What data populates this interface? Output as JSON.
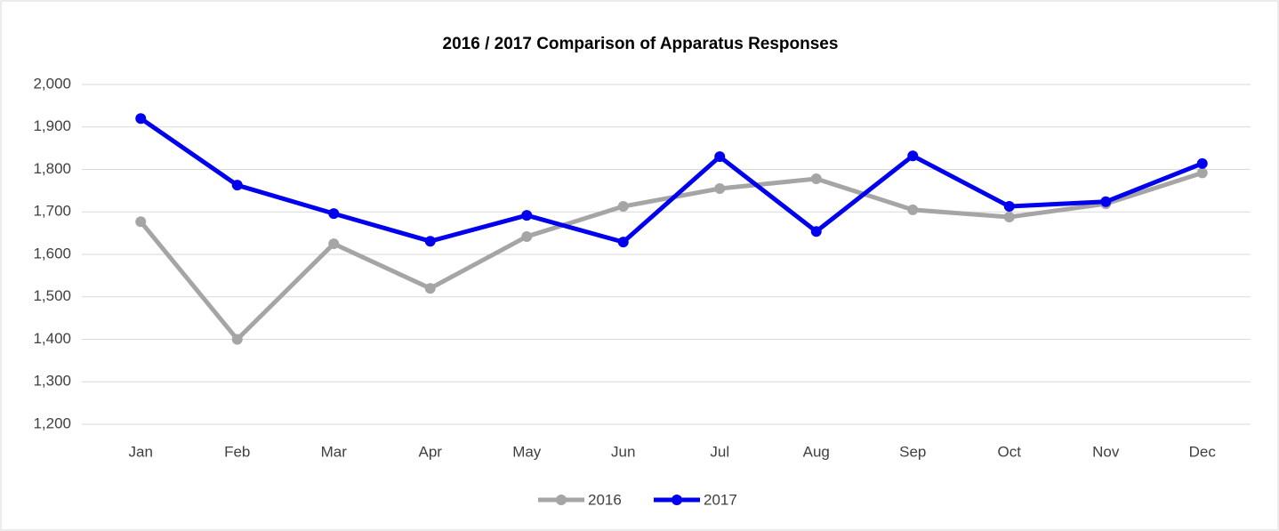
{
  "chart_data": {
    "type": "line",
    "title": "2016 / 2017 Comparison of Apparatus Responses",
    "categories": [
      "Jan",
      "Feb",
      "Mar",
      "Apr",
      "May",
      "Jun",
      "Jul",
      "Aug",
      "Sep",
      "Oct",
      "Nov",
      "Dec"
    ],
    "series": [
      {
        "name": "2016",
        "color": "#a5a5a5",
        "values": [
          1677,
          1400,
          1625,
          1520,
          1642,
          1713,
          1755,
          1778,
          1705,
          1688,
          1719,
          1792
        ]
      },
      {
        "name": "2017",
        "color": "#0000ee",
        "values": [
          1920,
          1763,
          1696,
          1631,
          1692,
          1629,
          1830,
          1654,
          1832,
          1713,
          1724,
          1814
        ]
      }
    ],
    "ylim": [
      1200,
      2000
    ],
    "yticks": [
      {
        "value": 1200,
        "label": "1,200"
      },
      {
        "value": 1300,
        "label": "1,300"
      },
      {
        "value": 1400,
        "label": "1,400"
      },
      {
        "value": 1500,
        "label": "1,500"
      },
      {
        "value": 1600,
        "label": "1,600"
      },
      {
        "value": 1700,
        "label": "1,700"
      },
      {
        "value": 1800,
        "label": "1,800"
      },
      {
        "value": 1900,
        "label": "1,900"
      },
      {
        "value": 2000,
        "label": "2,000"
      }
    ],
    "grid": true,
    "legend": "bottom"
  }
}
